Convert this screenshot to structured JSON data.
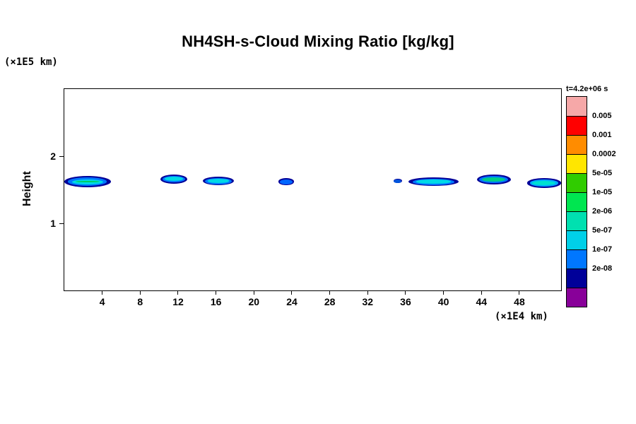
{
  "title": "NH4SH-s-Cloud Mixing Ratio [kg/kg]",
  "y_axis": {
    "unit_label": "(×1E5 km)",
    "title": "Height"
  },
  "x_axis": {
    "unit_label": "(×1E4 km)"
  },
  "colorbar_title": "t=4.2e+06 s",
  "chart_data": {
    "type": "heatmap",
    "title": "NH4SH-s-Cloud Mixing Ratio [kg/kg]",
    "xlabel": "(×1E4 km)",
    "ylabel": "Height (×1E5 km)",
    "time_label": "t=4.2e+06 s",
    "xlim": [
      0,
      52.4
    ],
    "ylim": [
      0,
      3.0
    ],
    "x_ticks": [
      4,
      8,
      12,
      16,
      20,
      24,
      28,
      32,
      36,
      40,
      44,
      48
    ],
    "y_ticks": [
      1,
      2
    ],
    "grid": false,
    "legend_position": "right-colorbar",
    "colorbar": {
      "levels": [
        "0.005",
        "0.001",
        "0.0002",
        "5e-05",
        "1e-05",
        "2e-06",
        "5e-07",
        "1e-07",
        "2e-08"
      ],
      "colors": [
        "#f6a8a8",
        "#ff0000",
        "#ff8c00",
        "#ffe600",
        "#30cc00",
        "#00e650",
        "#00e0b0",
        "#00d0e8",
        "#0077ff",
        "#000099",
        "#880099"
      ]
    },
    "clouds": [
      {
        "x1": 0.0,
        "x2": 4.9,
        "y_center": 1.62,
        "thickness": 0.17,
        "layers": [
          "#000099",
          "#0077ff",
          "#00d9e6",
          "#00cc66"
        ]
      },
      {
        "x1": 10.1,
        "x2": 13.0,
        "y_center": 1.66,
        "thickness": 0.14,
        "layers": [
          "#000099",
          "#0077ff",
          "#00d9e6"
        ]
      },
      {
        "x1": 14.6,
        "x2": 17.9,
        "y_center": 1.63,
        "thickness": 0.13,
        "layers": [
          "#000099",
          "#0077ff",
          "#00d9e6"
        ]
      },
      {
        "x1": 22.6,
        "x2": 24.2,
        "y_center": 1.62,
        "thickness": 0.1,
        "layers": [
          "#000099",
          "#0066ff"
        ]
      },
      {
        "x1": 34.7,
        "x2": 35.6,
        "y_center": 1.63,
        "thickness": 0.07,
        "layers": [
          "#000099",
          "#0055dd"
        ]
      },
      {
        "x1": 36.3,
        "x2": 41.6,
        "y_center": 1.62,
        "thickness": 0.13,
        "layers": [
          "#000099",
          "#0077ff",
          "#00d9e6"
        ]
      },
      {
        "x1": 43.5,
        "x2": 47.1,
        "y_center": 1.65,
        "thickness": 0.15,
        "layers": [
          "#000099",
          "#0077ff",
          "#00cc88"
        ]
      },
      {
        "x1": 48.8,
        "x2": 52.4,
        "y_center": 1.6,
        "thickness": 0.14,
        "layers": [
          "#000099",
          "#00aaff",
          "#00e0d0"
        ]
      }
    ]
  }
}
